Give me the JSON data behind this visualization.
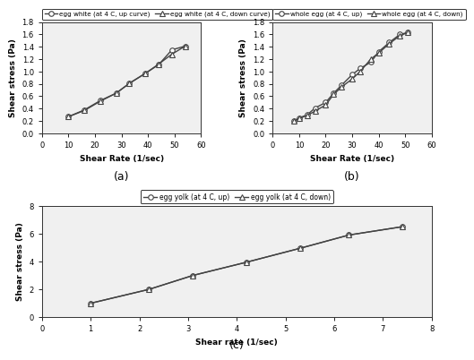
{
  "egg_white_up_x": [
    10,
    16,
    22,
    28,
    33,
    39,
    44,
    49,
    54
  ],
  "egg_white_up_y": [
    0.27,
    0.38,
    0.53,
    0.65,
    0.81,
    0.97,
    1.11,
    1.35,
    1.41
  ],
  "egg_white_down_x": [
    10,
    16,
    22,
    28,
    33,
    39,
    44,
    49,
    54
  ],
  "egg_white_down_y": [
    0.27,
    0.37,
    0.52,
    0.65,
    0.81,
    0.97,
    1.12,
    1.28,
    1.41
  ],
  "whole_egg_up_x": [
    8,
    10,
    13,
    16,
    20,
    23,
    26,
    30,
    33,
    37,
    40,
    44,
    48,
    51
  ],
  "whole_egg_up_y": [
    0.2,
    0.25,
    0.3,
    0.41,
    0.5,
    0.65,
    0.78,
    0.95,
    1.05,
    1.15,
    1.32,
    1.47,
    1.6,
    1.63
  ],
  "whole_egg_down_x": [
    8,
    10,
    13,
    16,
    20,
    23,
    26,
    30,
    33,
    37,
    40,
    44,
    48,
    51
  ],
  "whole_egg_down_y": [
    0.2,
    0.24,
    0.29,
    0.36,
    0.46,
    0.63,
    0.75,
    0.88,
    1.0,
    1.2,
    1.3,
    1.45,
    1.58,
    1.63
  ],
  "egg_yolk_up_x": [
    1.0,
    2.2,
    3.1,
    4.2,
    5.3,
    6.3,
    7.4
  ],
  "egg_yolk_up_y": [
    1.0,
    2.0,
    3.0,
    3.95,
    4.95,
    5.9,
    6.5
  ],
  "egg_yolk_down_x": [
    1.0,
    2.2,
    3.1,
    4.2,
    5.3,
    6.3,
    7.4
  ],
  "egg_yolk_down_y": [
    1.0,
    2.0,
    3.0,
    3.95,
    4.95,
    5.9,
    6.5
  ],
  "label_ew_up": "egg white (at 4 C, up curve)",
  "label_ew_down": "egg white (at 4 C, down curve)",
  "label_we_up": "whole egg (at 4 C, up)",
  "label_we_down": "whole egg (at 4 C, down)",
  "label_ey_up": "egg yolk (at 4 C, up)",
  "label_ey_down": "egg yolk (at 4 C, down)",
  "ylabel_ab": "Shear stress (Pa)",
  "ylabel_c": "Shear stress (Pa)",
  "xlabel_ab": "Shear Rate (1/sec)",
  "xlabel_c": "Shear rate (1/sec)",
  "label_a": "(a)",
  "label_b": "(b)",
  "label_c": "(c)",
  "line_color": "#444444",
  "marker_circle": "o",
  "marker_triangle": "^",
  "markersize": 4,
  "linewidth": 1.0,
  "background_color": "#ffffff",
  "plot_bg": "#f0f0f0",
  "xlim_a": [
    0,
    60
  ],
  "ylim_a": [
    0,
    1.8
  ],
  "xlim_b": [
    0,
    60
  ],
  "ylim_b": [
    0,
    1.8
  ],
  "xlim_c": [
    0,
    8
  ],
  "ylim_c": [
    0,
    8
  ],
  "yticks_a": [
    0,
    0.2,
    0.4,
    0.6,
    0.8,
    1.0,
    1.2,
    1.4,
    1.6,
    1.8
  ],
  "yticks_b": [
    0,
    0.2,
    0.4,
    0.6,
    0.8,
    1.0,
    1.2,
    1.4,
    1.6,
    1.8
  ],
  "yticks_c": [
    0,
    2,
    4,
    6,
    8
  ],
  "xticks_a": [
    0,
    10,
    20,
    30,
    40,
    50,
    60
  ],
  "xticks_b": [
    0,
    10,
    20,
    30,
    40,
    50,
    60
  ],
  "xticks_c": [
    0,
    1,
    2,
    3,
    4,
    5,
    6,
    7,
    8
  ]
}
